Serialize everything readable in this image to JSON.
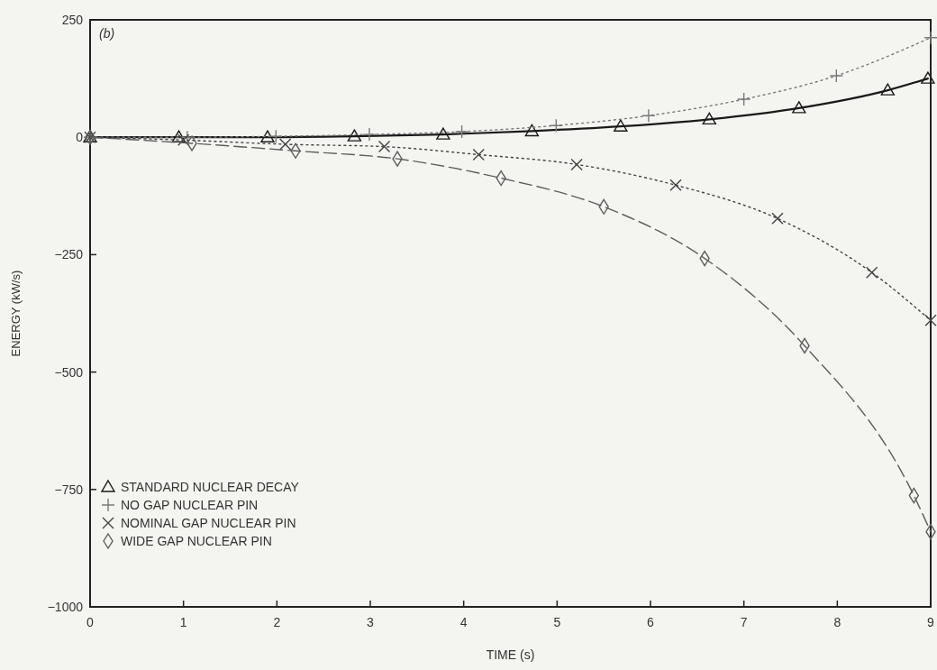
{
  "chart_data": {
    "type": "line",
    "xlabel": "TIME (s)",
    "ylabel": "ENERGY (kW/s)",
    "annotations": [
      "(b)"
    ],
    "xlim": [
      0,
      9
    ],
    "xticks": [
      0,
      1,
      2,
      3,
      4,
      5,
      6,
      7,
      8,
      9
    ],
    "ylim": [
      -1000,
      250
    ],
    "yticks": [
      -1000,
      -750,
      -500,
      -250,
      0,
      250
    ],
    "grid": false,
    "legend": "bottom left",
    "series": [
      {
        "name": "STANDARD NUCLEAR DECAY",
        "color": "#1a1a1a",
        "marker": "triangle",
        "line_style": "solid",
        "x": [
          0,
          0.95,
          1.9,
          2.83,
          3.78,
          4.73,
          5.68,
          6.63,
          7.59,
          8.54,
          8.97
        ],
        "values": [
          0,
          0,
          0,
          2,
          6,
          13,
          23,
          38,
          62,
          100,
          125
        ]
      },
      {
        "name": "NO GAP NUCLEAR PIN",
        "color": "#7a7a7a",
        "marker": "plus",
        "line_style": "dotted",
        "x": [
          0,
          1.04,
          1.99,
          2.99,
          3.98,
          4.99,
          5.98,
          7.0,
          7.99,
          9.0
        ],
        "values": [
          0,
          0,
          2,
          6,
          12,
          25,
          46,
          81,
          131,
          212
        ]
      },
      {
        "name": "NOMINAL GAP NUCLEAR PIN",
        "color": "#444444",
        "marker": "cross",
        "line_style": "dotted",
        "x": [
          0,
          1.0,
          2.09,
          3.15,
          4.16,
          5.21,
          6.27,
          7.36,
          8.37,
          9.0
        ],
        "values": [
          0,
          -6,
          -15,
          -20,
          -37,
          -58,
          -102,
          -173,
          -288,
          -390
        ]
      },
      {
        "name": "WIDE GAP NUCLEAR PIN",
        "color": "#5e5e5e",
        "marker": "diamond",
        "line_style": "dashed",
        "x": [
          0,
          1.09,
          2.2,
          3.29,
          4.4,
          5.5,
          6.58,
          7.65,
          8.82,
          9.0
        ],
        "values": [
          0,
          -13,
          -29,
          -46,
          -87,
          -148,
          -258,
          -444,
          -763,
          -840
        ]
      }
    ]
  }
}
